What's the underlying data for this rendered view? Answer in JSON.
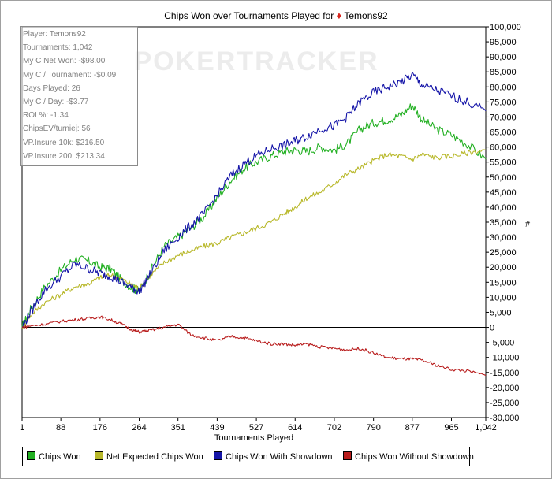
{
  "title_prefix": "Chips Won over Tournaments Played for",
  "title_player": "Temons92",
  "watermark": "POKERTRACKER",
  "stats": [
    "Player: Temons92",
    "Tournaments: 1,042",
    "My C Net Won: -$98.00",
    "My C / Tournament: -$0.09",
    "Days Played: 26",
    "My C / Day: -$3.77",
    "ROI %: -1.34",
    "ChipsEV/turniej: 56",
    "VP.Insure 10k: $216.50",
    "VP.Insure 200: $213.34"
  ],
  "colors": {
    "chips_won": "#22b022",
    "net_expected": "#b8b82a",
    "showdown": "#1515a8",
    "without_showdown": "#b81c1c"
  },
  "chart_data": {
    "type": "line",
    "title": "Chips Won over Tournaments Played for Temons92",
    "xlabel": "Tournaments Played",
    "ylabel": "#",
    "xlim": [
      1,
      1042
    ],
    "ylim": [
      -30000,
      100000
    ],
    "x_ticks": [
      "1",
      "88",
      "176",
      "264",
      "351",
      "439",
      "527",
      "614",
      "702",
      "790",
      "877",
      "965",
      "1,042"
    ],
    "y_ticks": [
      "100,000",
      "95,000",
      "90,000",
      "85,000",
      "80,000",
      "75,000",
      "70,000",
      "65,000",
      "60,000",
      "55,000",
      "50,000",
      "45,000",
      "40,000",
      "35,000",
      "30,000",
      "25,000",
      "20,000",
      "15,000",
      "10,000",
      "5,000",
      "0",
      "-5,000",
      "-10,000",
      "-15,000",
      "-20,000",
      "-25,000",
      "-30,000"
    ],
    "legend_position": "bottom",
    "x": [
      1,
      20,
      50,
      88,
      120,
      150,
      176,
      200,
      225,
      250,
      264,
      290,
      320,
      351,
      380,
      410,
      439,
      470,
      500,
      527,
      560,
      590,
      614,
      640,
      670,
      702,
      730,
      760,
      790,
      820,
      850,
      877,
      900,
      930,
      965,
      1000,
      1042
    ],
    "series": [
      {
        "name": "Chips Won",
        "key": "chips_won",
        "values": [
          0,
          6000,
          13000,
          19000,
          23000,
          22000,
          20000,
          19500,
          15500,
          13000,
          12000,
          19000,
          27000,
          30000,
          33000,
          37000,
          43000,
          49000,
          53000,
          55000,
          57000,
          58500,
          59000,
          58500,
          60000,
          59000,
          61000,
          66000,
          68000,
          69000,
          70500,
          74000,
          69000,
          66000,
          64000,
          61000,
          56000
        ]
      },
      {
        "name": "Net Expected Chips Won",
        "key": "net_expected",
        "values": [
          0,
          4000,
          8000,
          11000,
          13500,
          14500,
          16500,
          17500,
          16000,
          14000,
          13000,
          17500,
          21500,
          24000,
          25500,
          27000,
          28000,
          30000,
          31500,
          33000,
          35000,
          38000,
          40000,
          43000,
          45000,
          48000,
          51000,
          53000,
          55500,
          57500,
          57000,
          56000,
          57500,
          56500,
          57000,
          58000,
          59000
        ]
      },
      {
        "name": "Chips Won With Showdown",
        "key": "showdown",
        "values": [
          0,
          5000,
          12000,
          17000,
          21000,
          19500,
          18000,
          17000,
          15000,
          13000,
          12000,
          18000,
          25500,
          30000,
          34000,
          38000,
          44000,
          50500,
          54500,
          57000,
          59500,
          60500,
          62000,
          63500,
          66000,
          67000,
          70000,
          75000,
          78000,
          80000,
          81500,
          84000,
          80500,
          79000,
          77000,
          75000,
          72000
        ]
      },
      {
        "name": "Chips Won Without Showdown",
        "key": "without_showdown",
        "values": [
          0,
          500,
          1000,
          2000,
          2500,
          3000,
          3500,
          2500,
          1000,
          -1000,
          -1500,
          -1000,
          0,
          1000,
          -2500,
          -3500,
          -4500,
          -3000,
          -3500,
          -4500,
          -5500,
          -5500,
          -6000,
          -5500,
          -6500,
          -7000,
          -7500,
          -7000,
          -8500,
          -10000,
          -10500,
          -10500,
          -11000,
          -12500,
          -14000,
          -14500,
          -16000
        ]
      }
    ]
  }
}
